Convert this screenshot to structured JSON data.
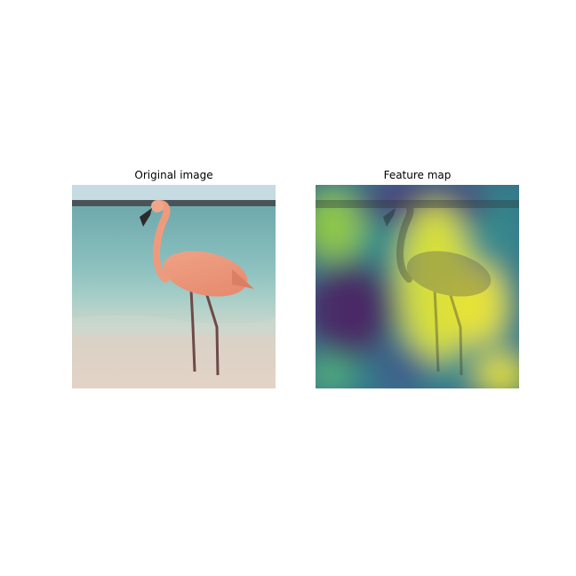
{
  "panels": [
    {
      "title": "Original image"
    },
    {
      "title": "Feature map"
    }
  ],
  "colormap": "viridis",
  "colors": {
    "sky": "#bcd6dd",
    "sea": "#7fb5b6",
    "sand": "#d9cbbd",
    "flamingo": "#e9967a",
    "beak": "#2b2b2b"
  }
}
